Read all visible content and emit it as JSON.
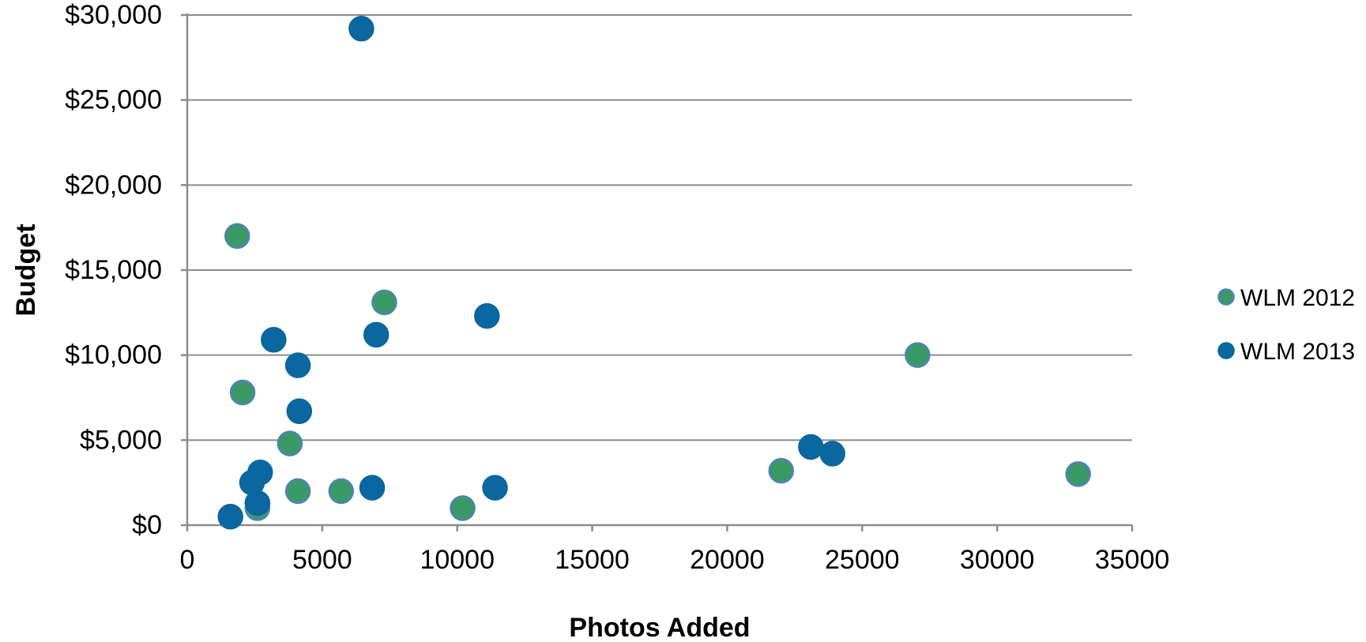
{
  "chart_data": {
    "type": "scatter",
    "title": "",
    "xlabel": "Photos Added",
    "ylabel": "Budget",
    "xlim": [
      0,
      35000
    ],
    "ylim": [
      0,
      30000
    ],
    "x_ticks": [
      0,
      5000,
      10000,
      15000,
      20000,
      25000,
      30000,
      35000
    ],
    "x_tick_labels": [
      "0",
      "5000",
      "10000",
      "15000",
      "20000",
      "25000",
      "30000",
      "35000"
    ],
    "y_ticks": [
      0,
      5000,
      10000,
      15000,
      20000,
      25000,
      30000
    ],
    "y_tick_labels": [
      "$0",
      "$5,000",
      "$10,000",
      "$15,000",
      "$20,000",
      "$25,000",
      "$30,000"
    ],
    "grid": true,
    "legend_position": "right",
    "series": [
      {
        "name": "WLM 2012",
        "color": "#3a9a66",
        "edge_color": "#4f81bd",
        "points": [
          {
            "x": 1850,
            "y": 17000
          },
          {
            "x": 2050,
            "y": 7800
          },
          {
            "x": 2600,
            "y": 1000
          },
          {
            "x": 3800,
            "y": 4800
          },
          {
            "x": 4100,
            "y": 2000
          },
          {
            "x": 5700,
            "y": 2000
          },
          {
            "x": 7300,
            "y": 13100
          },
          {
            "x": 10200,
            "y": 1000
          },
          {
            "x": 22000,
            "y": 3200
          },
          {
            "x": 27050,
            "y": 10000
          },
          {
            "x": 33000,
            "y": 3000
          }
        ]
      },
      {
        "name": "WLM 2013",
        "color": "#0a679f",
        "edge_color": "#0a679f",
        "points": [
          {
            "x": 6450,
            "y": 29200
          },
          {
            "x": 1600,
            "y": 500
          },
          {
            "x": 2400,
            "y": 2500
          },
          {
            "x": 2700,
            "y": 3100
          },
          {
            "x": 2600,
            "y": 1300
          },
          {
            "x": 3200,
            "y": 10900
          },
          {
            "x": 4100,
            "y": 9400
          },
          {
            "x": 4150,
            "y": 6700
          },
          {
            "x": 6850,
            "y": 2200
          },
          {
            "x": 7000,
            "y": 11200
          },
          {
            "x": 11100,
            "y": 12300
          },
          {
            "x": 11400,
            "y": 2200
          },
          {
            "x": 23100,
            "y": 4600
          },
          {
            "x": 23900,
            "y": 4200
          }
        ]
      }
    ]
  }
}
